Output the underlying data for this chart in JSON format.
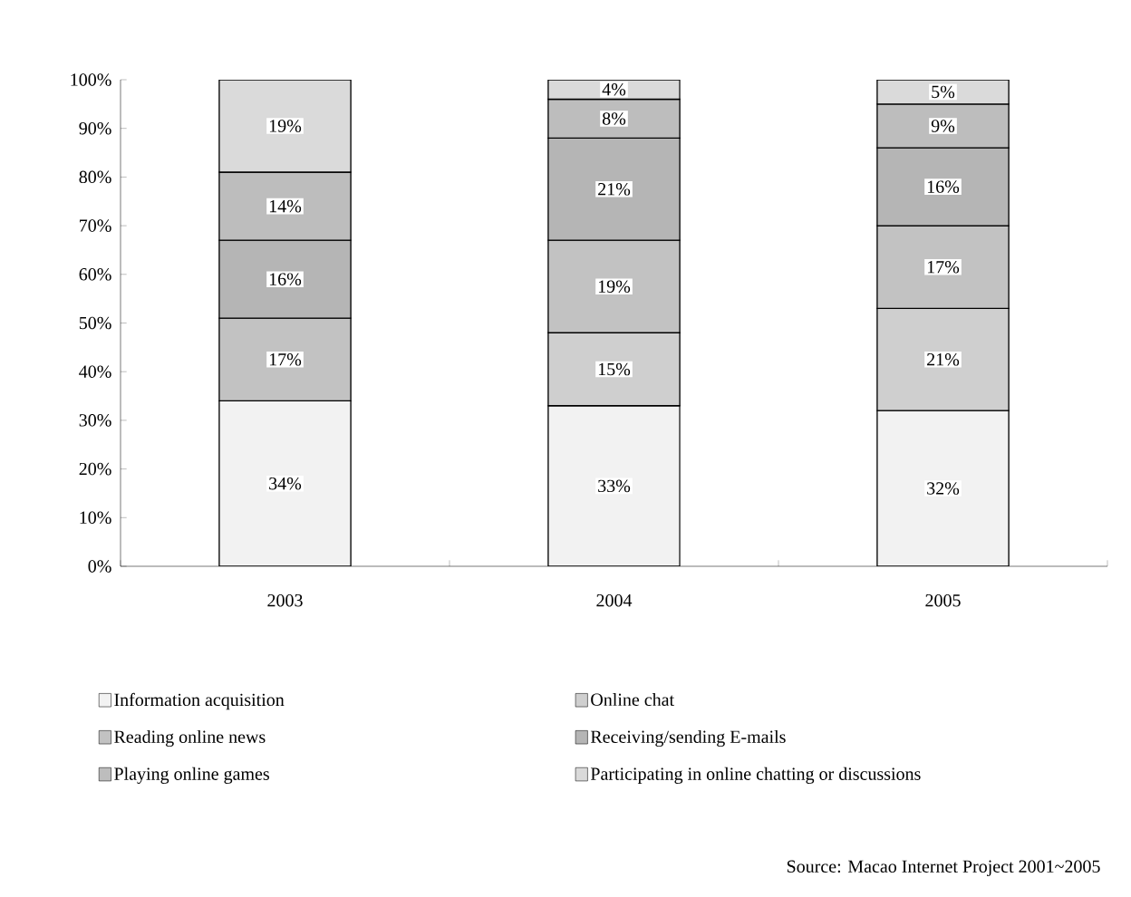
{
  "chart_data": {
    "type": "bar",
    "stacked": true,
    "categories": [
      "2003",
      "2004",
      "2005"
    ],
    "series": [
      {
        "name": "Information acquisition",
        "color": "#f2f2f2",
        "values": [
          34,
          33,
          32
        ],
        "value_labels": [
          "34%",
          "33%",
          "32%"
        ]
      },
      {
        "name": "Online chat",
        "color": "#cfcfcf",
        "values": [
          null,
          15,
          21
        ],
        "value_labels": [
          null,
          "15%",
          "21%"
        ]
      },
      {
        "name": "Reading online news",
        "color": "#c2c2c2",
        "values": [
          17,
          19,
          17
        ],
        "value_labels": [
          "17%",
          "19%",
          "17%"
        ]
      },
      {
        "name": "Receiving/sending E-mails",
        "color": "#b5b5b5",
        "values": [
          16,
          21,
          16
        ],
        "value_labels": [
          "16%",
          "21%",
          "16%"
        ]
      },
      {
        "name": "Playing online games",
        "color": "#bdbdbd",
        "values": [
          14,
          8,
          9
        ],
        "value_labels": [
          "14%",
          "8%",
          "9%"
        ]
      },
      {
        "name": "Participating in online chatting or discussions",
        "color": "#dadada",
        "values": [
          19,
          4,
          5
        ],
        "value_labels": [
          "19%",
          "4%",
          "5%"
        ]
      }
    ],
    "ylim": [
      0,
      100
    ],
    "yticks": [
      {
        "value": 0,
        "label": "0%"
      },
      {
        "value": 10,
        "label": "10%"
      },
      {
        "value": 20,
        "label": "20%"
      },
      {
        "value": 30,
        "label": "30%"
      },
      {
        "value": 40,
        "label": "40%"
      },
      {
        "value": 50,
        "label": "50%"
      },
      {
        "value": 60,
        "label": "60%"
      },
      {
        "value": 70,
        "label": "70%"
      },
      {
        "value": 80,
        "label": "80%"
      },
      {
        "value": 90,
        "label": "90%"
      },
      {
        "value": 100,
        "label": "100%"
      }
    ],
    "grid": false,
    "legend": "bottom",
    "annotations": [
      "Source: Macao Internet Project 2001~2005"
    ]
  }
}
